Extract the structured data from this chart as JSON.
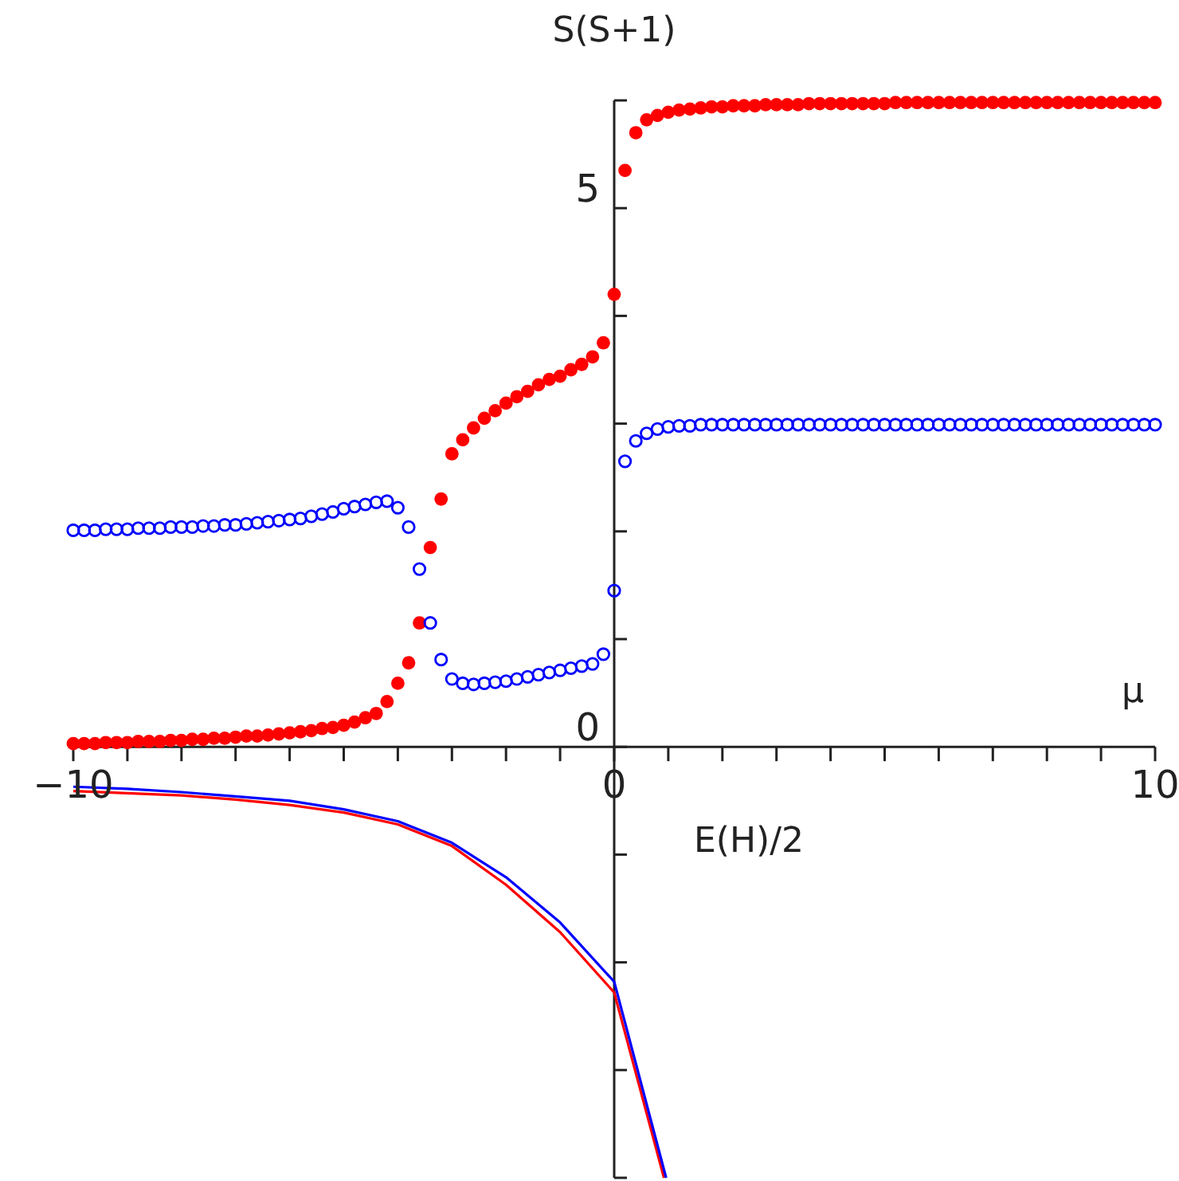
{
  "chart_data": {
    "type": "scatter",
    "ylabel": "S(S+1)",
    "xlabel": "μ",
    "annotations": [
      "E(H)/2"
    ],
    "xlim": [
      -10,
      10
    ],
    "ylim": [
      -4,
      6
    ],
    "xticks": [
      {
        "value": -10,
        "label": "−10"
      },
      {
        "value": -9,
        "label": null
      },
      {
        "value": -8,
        "label": null
      },
      {
        "value": -7,
        "label": null
      },
      {
        "value": -6,
        "label": null
      },
      {
        "value": -5,
        "label": null
      },
      {
        "value": -4,
        "label": null
      },
      {
        "value": -3,
        "label": null
      },
      {
        "value": -2,
        "label": null
      },
      {
        "value": -1,
        "label": null
      },
      0,
      {
        "value": 1,
        "label": null
      },
      {
        "value": 2,
        "label": null
      },
      {
        "value": 3,
        "label": null
      },
      {
        "value": 4,
        "label": null
      },
      {
        "value": 5,
        "label": null
      },
      {
        "value": 6,
        "label": null
      },
      {
        "value": 7,
        "label": null
      },
      {
        "value": 8,
        "label": null
      },
      {
        "value": 9,
        "label": null
      },
      10
    ],
    "yticks": [
      {
        "value": -4,
        "label": null
      },
      {
        "value": -3,
        "label": null
      },
      {
        "value": -2,
        "label": null
      },
      {
        "value": -1,
        "label": null
      },
      0,
      {
        "value": 1,
        "label": null
      },
      {
        "value": 2,
        "label": null
      },
      {
        "value": 3,
        "label": null
      },
      {
        "value": 4,
        "label": null
      },
      5,
      {
        "value": 6,
        "label": null
      }
    ],
    "grid": false,
    "x": [
      -10,
      -9.8,
      -9.6,
      -9.4,
      -9.2,
      -9,
      -8.8,
      -8.6,
      -8.4,
      -8.2,
      -8,
      -7.8,
      -7.6,
      -7.4,
      -7.2,
      -7,
      -6.8,
      -6.6,
      -6.4,
      -6.2,
      -6,
      -5.8,
      -5.6,
      -5.4,
      -5.2,
      -5,
      -4.8,
      -4.6,
      -4.4,
      -4.2,
      -4,
      -3.8,
      -3.6,
      -3.4,
      -3.2,
      -3,
      -2.8,
      -2.6,
      -2.4,
      -2.2,
      -2,
      -1.8,
      -1.6,
      -1.4,
      -1.2,
      -1,
      -0.8,
      -0.6,
      -0.4,
      -0.2,
      0,
      0.2,
      0.4,
      0.6,
      0.8,
      1,
      1.2,
      1.4,
      1.6,
      1.8,
      2,
      2.2,
      2.4,
      2.6,
      2.8,
      3,
      3.2,
      3.4,
      3.6,
      3.8,
      4,
      4.2,
      4.4,
      4.6,
      4.8,
      5,
      5.2,
      5.4,
      5.6,
      5.8,
      6,
      6.2,
      6.4,
      6.6,
      6.8,
      7,
      7.2,
      7.4,
      7.6,
      7.8,
      8,
      8.2,
      8.4,
      8.6,
      8.8,
      9,
      9.2,
      9.4,
      9.6,
      9.8,
      10
    ],
    "series": [
      {
        "color": "#ff0000",
        "marker": "circle",
        "values": [
          0.03,
          0.03,
          0.03,
          0.04,
          0.04,
          0.04,
          0.05,
          0.05,
          0.05,
          0.06,
          0.06,
          0.07,
          0.07,
          0.08,
          0.08,
          0.09,
          0.1,
          0.1,
          0.11,
          0.12,
          0.13,
          0.14,
          0.15,
          0.17,
          0.18,
          0.2,
          0.23,
          0.27,
          0.31,
          0.42,
          0.59,
          0.78,
          1.15,
          1.85,
          2.3,
          2.72,
          2.85,
          2.96,
          3.05,
          3.12,
          3.19,
          3.25,
          3.3,
          3.36,
          3.41,
          3.44,
          3.5,
          3.55,
          3.62,
          3.75,
          4.2,
          5.35,
          5.7,
          5.82,
          5.86,
          5.89,
          5.91,
          5.92,
          5.93,
          5.94,
          5.94,
          5.95,
          5.95,
          5.95,
          5.96,
          5.96,
          5.96,
          5.96,
          5.97,
          5.97,
          5.97,
          5.97,
          5.97,
          5.97,
          5.97,
          5.97,
          5.98,
          5.98,
          5.98,
          5.98,
          5.98,
          5.98,
          5.98,
          5.98,
          5.98,
          5.98,
          5.98,
          5.98,
          5.98,
          5.98,
          5.98,
          5.98,
          5.98,
          5.98,
          5.98,
          5.98,
          5.98,
          5.98,
          5.98,
          5.98,
          5.98
        ]
      },
      {
        "color": "#0000ff",
        "marker": "circle",
        "values": [
          2.01,
          2.01,
          2.01,
          2.02,
          2.02,
          2.02,
          2.03,
          2.03,
          2.03,
          2.04,
          2.04,
          2.04,
          2.05,
          2.05,
          2.06,
          2.06,
          2.07,
          2.08,
          2.09,
          2.1,
          2.11,
          2.12,
          2.14,
          2.16,
          2.18,
          2.21,
          2.23,
          2.25,
          2.27,
          2.28,
          2.22,
          2.04,
          1.65,
          1.15,
          0.81,
          0.63,
          0.59,
          0.58,
          0.59,
          0.6,
          0.61,
          0.63,
          0.65,
          0.67,
          0.69,
          0.71,
          0.73,
          0.75,
          0.77,
          0.86,
          1.45,
          2.65,
          2.84,
          2.91,
          2.95,
          2.97,
          2.98,
          2.98,
          2.99,
          2.99,
          2.99,
          2.99,
          2.99,
          2.99,
          2.99,
          2.99,
          2.99,
          2.99,
          2.99,
          2.99,
          2.99,
          2.99,
          2.99,
          2.99,
          2.99,
          2.99,
          2.99,
          2.99,
          2.99,
          2.99,
          2.99,
          2.99,
          2.99,
          2.99,
          2.99,
          2.99,
          2.99,
          2.99,
          2.99,
          2.99,
          2.99,
          2.99,
          2.99,
          2.99,
          2.99,
          2.99,
          2.99,
          2.99,
          2.99,
          2.99,
          2.99
        ]
      },
      {
        "type": "line",
        "color": "#ff0000",
        "marker": "none",
        "line_style": "solid",
        "x": [
          -10,
          -9,
          -8,
          -7,
          -6,
          -5,
          -4,
          -3,
          -2,
          -1,
          0,
          0.92
        ],
        "values": [
          -0.41,
          -0.43,
          -0.45,
          -0.49,
          -0.54,
          -0.61,
          -0.72,
          -0.92,
          -1.28,
          -1.72,
          -2.28,
          -4
        ]
      },
      {
        "type": "line",
        "color": "#0000ff",
        "marker": "none",
        "line_style": "solid",
        "x": [
          -10,
          -9,
          -8,
          -7,
          -6,
          -5,
          -4,
          -3,
          -2,
          -1,
          0,
          0.96
        ],
        "values": [
          -0.37,
          -0.39,
          -0.42,
          -0.46,
          -0.5,
          -0.58,
          -0.69,
          -0.89,
          -1.21,
          -1.63,
          -2.18,
          -4
        ]
      }
    ]
  }
}
